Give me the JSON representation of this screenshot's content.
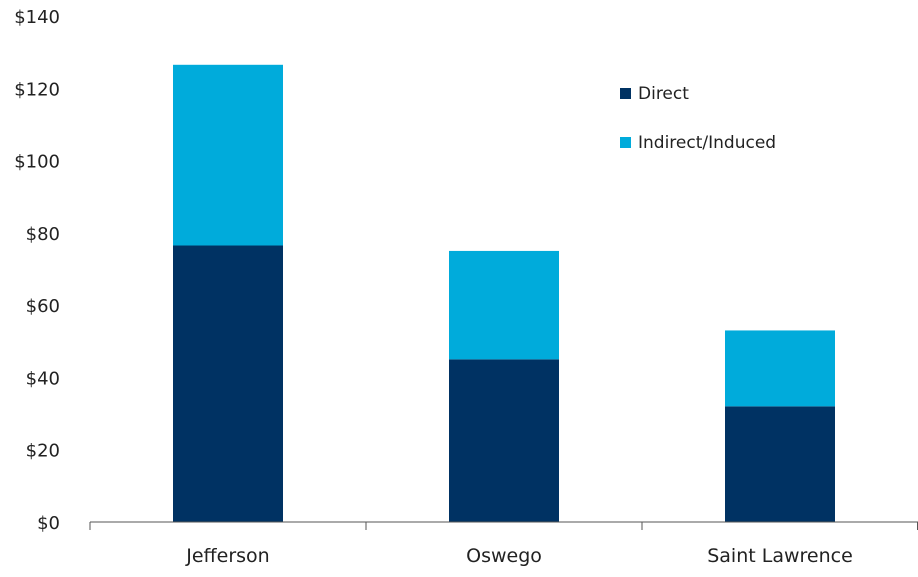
{
  "chart_data": {
    "type": "bar",
    "stacked": true,
    "categories": [
      "Jefferson",
      "Oswego",
      "Saint Lawrence"
    ],
    "series": [
      {
        "name": "Direct",
        "values": [
          76.5,
          45,
          32
        ],
        "color": "#003263"
      },
      {
        "name": "Indirect/Induced",
        "values": [
          50,
          30,
          21
        ],
        "color": "#00ABDB"
      }
    ],
    "ylim": [
      0,
      140
    ],
    "yticks": [
      {
        "value": 0,
        "label": "$0"
      },
      {
        "value": 20,
        "label": "$20"
      },
      {
        "value": 40,
        "label": "$40"
      },
      {
        "value": 60,
        "label": "$60"
      },
      {
        "value": 80,
        "label": "$80"
      },
      {
        "value": 100,
        "label": "$100"
      },
      {
        "value": 120,
        "label": "$120"
      },
      {
        "value": 140,
        "label": "$140"
      }
    ],
    "legend_position": "top-right",
    "grid": false
  }
}
